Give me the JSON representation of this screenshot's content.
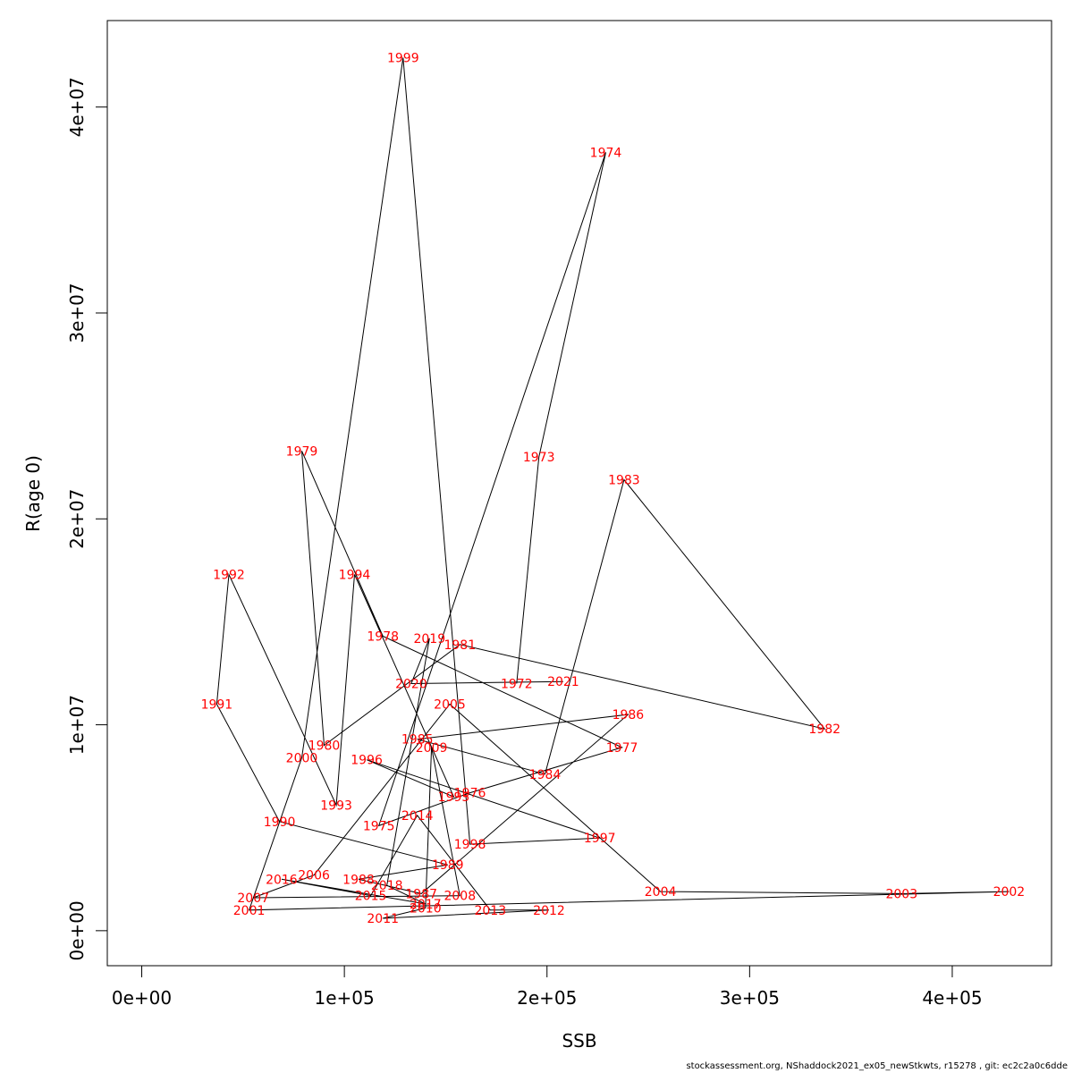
{
  "chart_data": {
    "type": "line",
    "xlabel": "SSB",
    "ylabel": "R(age 0)",
    "xlim": [
      -17000,
      449000
    ],
    "ylim": [
      -1700000,
      44200000
    ],
    "x_ticks": [
      0,
      100000,
      200000,
      300000,
      400000
    ],
    "x_tick_labels": [
      "0e+00",
      "1e+05",
      "2e+05",
      "3e+05",
      "4e+05"
    ],
    "y_ticks": [
      0,
      10000000,
      20000000,
      30000000,
      40000000
    ],
    "y_tick_labels": [
      "0e+00",
      "1e+07",
      "2e+07",
      "3e+07",
      "4e+07"
    ],
    "label_color": "#ff0000",
    "line_color": "#000000",
    "series": [
      {
        "points": [
          {
            "year": "1972",
            "ssb": 185000,
            "r": 12000000
          },
          {
            "year": "1973",
            "ssb": 196000,
            "r": 23000000
          },
          {
            "year": "1974",
            "ssb": 229000,
            "r": 37800000
          },
          {
            "year": "1975",
            "ssb": 117000,
            "r": 5100000
          },
          {
            "year": "1976",
            "ssb": 162000,
            "r": 6700000
          },
          {
            "year": "1977",
            "ssb": 237000,
            "r": 8900000
          },
          {
            "year": "1978",
            "ssb": 119000,
            "r": 14300000
          },
          {
            "year": "1979",
            "ssb": 79000,
            "r": 23300000
          },
          {
            "year": "1980",
            "ssb": 90000,
            "r": 9000000
          },
          {
            "year": "1981",
            "ssb": 157000,
            "r": 13900000
          },
          {
            "year": "1982",
            "ssb": 337000,
            "r": 9800000
          },
          {
            "year": "1983",
            "ssb": 238000,
            "r": 21900000
          },
          {
            "year": "1984",
            "ssb": 199000,
            "r": 7600000
          },
          {
            "year": "1985",
            "ssb": 136000,
            "r": 9300000
          },
          {
            "year": "1986",
            "ssb": 240000,
            "r": 10500000
          },
          {
            "year": "1987",
            "ssb": 138000,
            "r": 1800000
          },
          {
            "year": "1988",
            "ssb": 107000,
            "r": 2500000
          },
          {
            "year": "1989",
            "ssb": 151000,
            "r": 3200000
          },
          {
            "year": "1990",
            "ssb": 68000,
            "r": 5300000
          },
          {
            "year": "1991",
            "ssb": 37000,
            "r": 11000000
          },
          {
            "year": "1992",
            "ssb": 43000,
            "r": 17300000
          },
          {
            "year": "1993",
            "ssb": 96000,
            "r": 6100000
          },
          {
            "year": "1994",
            "ssb": 105000,
            "r": 17300000
          },
          {
            "year": "1995",
            "ssb": 154000,
            "r": 6500000
          },
          {
            "year": "1996",
            "ssb": 111000,
            "r": 8300000
          },
          {
            "year": "1997",
            "ssb": 226000,
            "r": 4500000
          },
          {
            "year": "1998",
            "ssb": 162000,
            "r": 4200000
          },
          {
            "year": "1999",
            "ssb": 129000,
            "r": 42400000
          },
          {
            "year": "2000",
            "ssb": 79000,
            "r": 8400000
          },
          {
            "year": "2001",
            "ssb": 53000,
            "r": 1000000
          },
          {
            "year": "2002",
            "ssb": 428000,
            "r": 1900000
          },
          {
            "year": "2003",
            "ssb": 375000,
            "r": 1800000
          },
          {
            "year": "2004",
            "ssb": 256000,
            "r": 1900000
          },
          {
            "year": "2005",
            "ssb": 152000,
            "r": 11000000
          },
          {
            "year": "2006",
            "ssb": 85000,
            "r": 2700000
          },
          {
            "year": "2007",
            "ssb": 55000,
            "r": 1600000
          },
          {
            "year": "2008",
            "ssb": 157000,
            "r": 1700000
          },
          {
            "year": "2009",
            "ssb": 143000,
            "r": 8900000
          },
          {
            "year": "2010",
            "ssb": 140000,
            "r": 1100000
          },
          {
            "year": "2011",
            "ssb": 119000,
            "r": 600000
          },
          {
            "year": "2012",
            "ssb": 201000,
            "r": 1000000
          },
          {
            "year": "2013",
            "ssb": 172000,
            "r": 1000000
          },
          {
            "year": "2014",
            "ssb": 136000,
            "r": 5600000
          },
          {
            "year": "2015",
            "ssb": 113000,
            "r": 1700000
          },
          {
            "year": "2016",
            "ssb": 69000,
            "r": 2500000
          },
          {
            "year": "2017",
            "ssb": 140000,
            "r": 1300000
          },
          {
            "year": "2018",
            "ssb": 121000,
            "r": 2200000
          },
          {
            "year": "2019",
            "ssb": 142000,
            "r": 14200000
          },
          {
            "year": "2020",
            "ssb": 133000,
            "r": 12000000
          },
          {
            "year": "2021",
            "ssb": 208000,
            "r": 12100000
          }
        ]
      }
    ]
  },
  "footer": "stockassessment.org, NShaddock2021_ex05_newStkwts, r15278 , git: ec2c2a0c6dde"
}
